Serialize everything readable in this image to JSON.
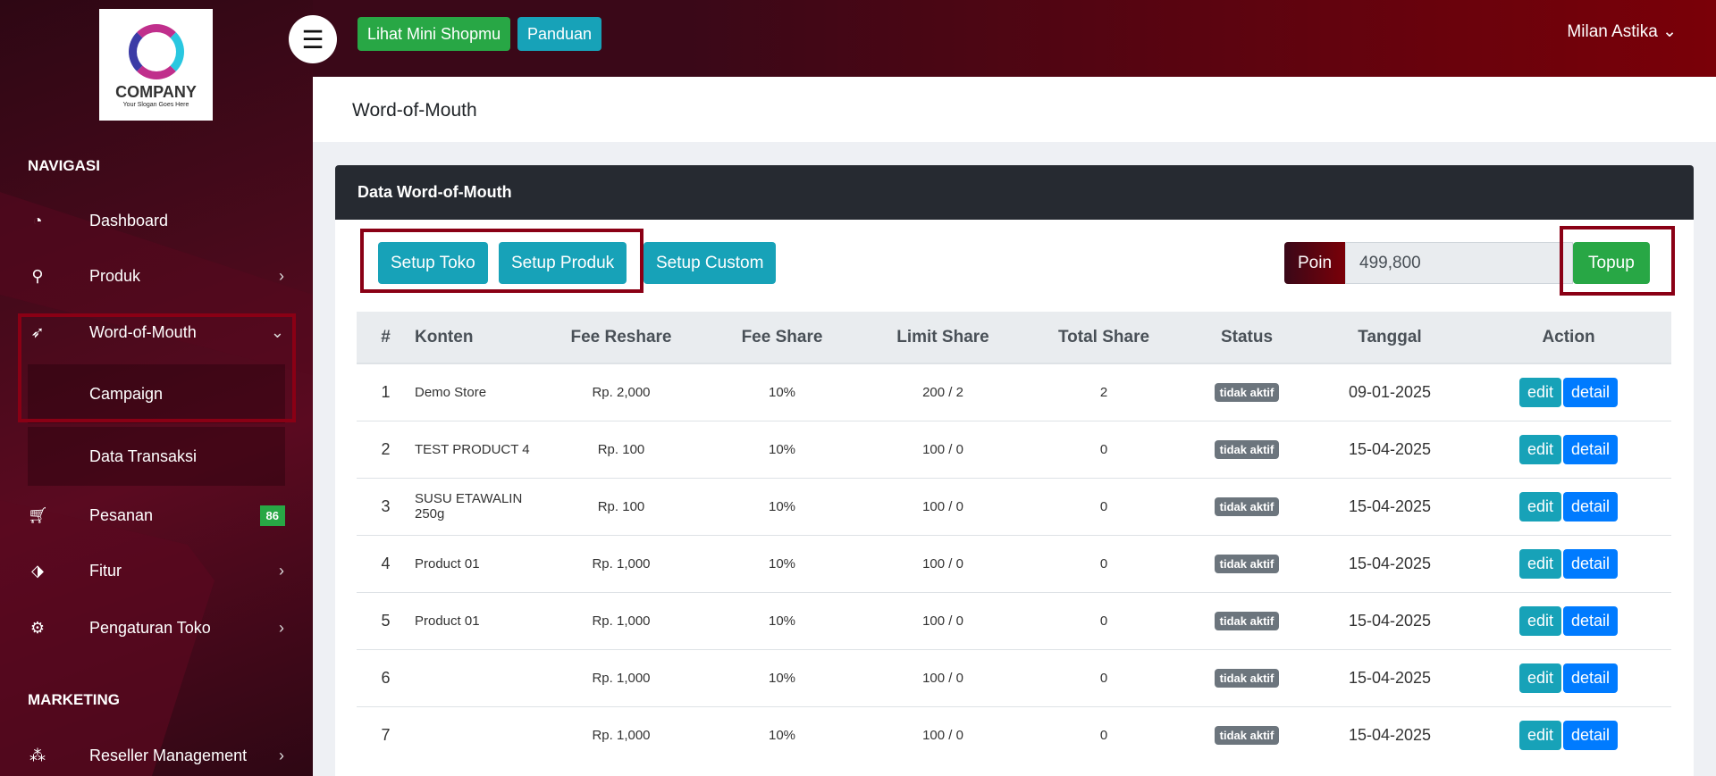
{
  "header": {
    "menu_icon": "hamburger-icon",
    "mini_shop_label": "Lihat Mini Shopmu",
    "guide_label": "Panduan",
    "user_name": "Milan Astika",
    "colors": {
      "green": "#28a745",
      "teal": "#17a2b8"
    }
  },
  "logo": {
    "company": "COMPANY",
    "slogan": "Your Slogan Goes Here"
  },
  "sidebar": {
    "nav_heading": "NAVIGASI",
    "marketing_heading": "MARKETING",
    "items": [
      {
        "label": "Dashboard",
        "icon": "tachometer-icon"
      },
      {
        "label": "Produk",
        "icon": "candy-cane-icon"
      },
      {
        "label": "Word-of-Mouth",
        "icon": "rocket-icon"
      },
      {
        "label": "Campaign"
      },
      {
        "label": "Data Transaksi"
      },
      {
        "label": "Pesanan",
        "icon": "cart-icon",
        "badge": "86"
      },
      {
        "label": "Fitur",
        "icon": "tags-icon"
      },
      {
        "label": "Pengaturan Toko",
        "icon": "cog-icon"
      },
      {
        "label": "Reseller Management",
        "icon": "cubes-icon"
      }
    ]
  },
  "page": {
    "title": "Word-of-Mouth"
  },
  "card": {
    "title": "Data Word-of-Mouth",
    "setup_toko": "Setup Toko",
    "setup_produk": "Setup Produk",
    "setup_custom": "Setup Custom",
    "poin_label": "Poin",
    "poin_value": "499,800",
    "topup": "Topup"
  },
  "table": {
    "columns": [
      "#",
      "Konten",
      "Fee Reshare",
      "Fee Share",
      "Limit Share",
      "Total Share",
      "Status",
      "Tanggal",
      "Action"
    ],
    "edit_label": "edit",
    "detail_label": "detail",
    "rows": [
      [
        "1",
        "Demo Store",
        "Rp. 2,000",
        "10%",
        "200 / 2",
        "2",
        "tidak aktif",
        "09-01-2025"
      ],
      [
        "2",
        "TEST PRODUCT 4",
        "Rp. 100",
        "10%",
        "100 / 0",
        "0",
        "tidak aktif",
        "15-04-2025"
      ],
      [
        "3",
        "SUSU ETAWALIN 250g",
        "Rp. 100",
        "10%",
        "100 / 0",
        "0",
        "tidak aktif",
        "15-04-2025"
      ],
      [
        "4",
        "Product 01",
        "Rp. 1,000",
        "10%",
        "100 / 0",
        "0",
        "tidak aktif",
        "15-04-2025"
      ],
      [
        "5",
        "Product 01",
        "Rp. 1,000",
        "10%",
        "100 / 0",
        "0",
        "tidak aktif",
        "15-04-2025"
      ],
      [
        "6",
        "",
        "Rp. 1,000",
        "10%",
        "100 / 0",
        "0",
        "tidak aktif",
        "15-04-2025"
      ],
      [
        "7",
        "",
        "Rp. 1,000",
        "10%",
        "100 / 0",
        "0",
        "tidak aktif",
        "15-04-2025"
      ]
    ]
  }
}
